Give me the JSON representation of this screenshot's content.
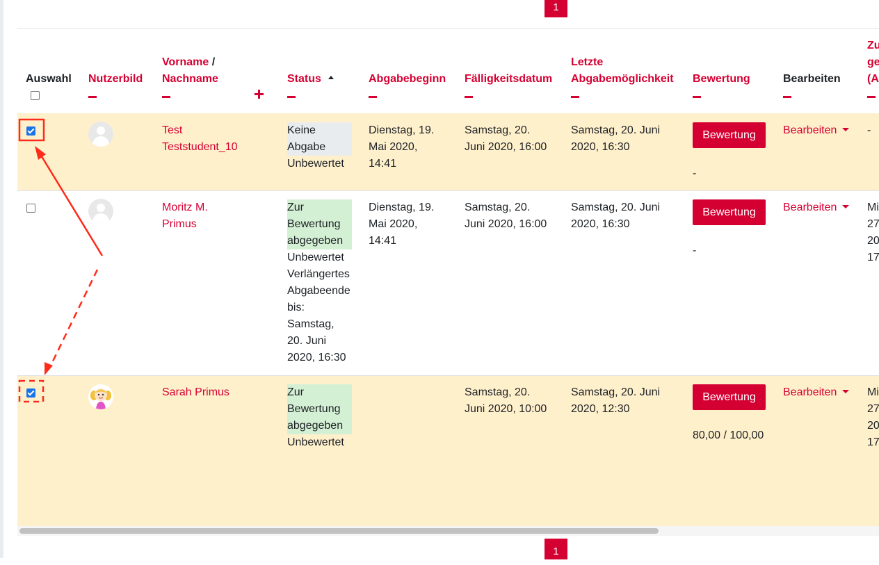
{
  "pagination": {
    "current_top": "1",
    "current_bottom": "1"
  },
  "headers": {
    "select": "Auswahl",
    "picture": "Nutzerbild",
    "firstname": "Vorname",
    "slash": " /",
    "lastname": "Nachname",
    "status": "Status",
    "start": "Abgabebeginn",
    "due": "Fälligkeitsdatum",
    "last_line1": "Letzte",
    "last_line2": "Abgabemöglichkeit",
    "grade": "Bewertung",
    "edit": "Bearbeiten",
    "next_line1": "Zu",
    "next_line2": "ge",
    "next_line3": "(A"
  },
  "rows": [
    {
      "selected": true,
      "name_line1": "Test",
      "name_line2": "Teststudent_10",
      "status_line1": "Keine",
      "status_line2": "Abgabe",
      "grade_status": "Unbewertet",
      "start_l1": "Dienstag, 19.",
      "start_l2": "Mai 2020,",
      "start_l3": "14:41",
      "due_l1": "Samstag, 20.",
      "due_l2": "Juni 2020, 16:00",
      "last_l1": "Samstag, 20. Juni",
      "last_l2": "2020, 16:30",
      "grade_button": "Bewertung",
      "grade_value": "-",
      "edit_label": "Bearbeiten",
      "extra": "-"
    },
    {
      "selected": false,
      "name_line1": "Moritz M.",
      "name_line2": "Primus",
      "status_line1": "Zur",
      "status_line2": "Bewertung",
      "status_line3": "abgegeben",
      "grade_status": "Unbewertet",
      "ext_l1": "Verlängertes",
      "ext_l2": "Abgabeende",
      "ext_l3": "bis:",
      "ext_l4": "Samstag,",
      "ext_l5": "20. Juni",
      "ext_l6": "2020, 16:30",
      "start_l1": "Dienstag, 19.",
      "start_l2": "Mai 2020,",
      "start_l3": "14:41",
      "due_l1": "Samstag, 20.",
      "due_l2": "Juni 2020, 16:00",
      "last_l1": "Samstag, 20. Juni",
      "last_l2": "2020, 16:30",
      "grade_button": "Bewertung",
      "grade_value": "-",
      "edit_label": "Bearbeiten",
      "extra_l1": "Mi",
      "extra_l2": "27",
      "extra_l3": "20",
      "extra_l4": "17"
    },
    {
      "selected": true,
      "name": "Sarah Primus",
      "status_line1": "Zur",
      "status_line2": "Bewertung",
      "status_line3": "abgegeben",
      "grade_status": "Unbewertet",
      "due_l1": "Samstag, 20.",
      "due_l2": "Juni 2020, 10:00",
      "last_l1": "Samstag, 20. Juni",
      "last_l2": "2020, 12:30",
      "grade_button": "Bewertung",
      "grade_value": "80,00 / 100,00",
      "edit_label": "Bearbeiten",
      "extra_l1": "Mi",
      "extra_l2": "27",
      "extra_l3": "20",
      "extra_l4": "17"
    }
  ],
  "colors": {
    "accent": "#d50032",
    "selected_row": "#fff0cc",
    "annotation": "#ff2a1a"
  }
}
